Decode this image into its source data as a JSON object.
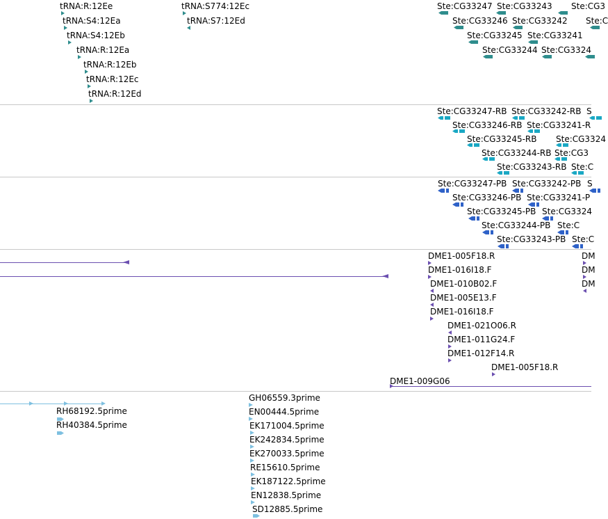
{
  "colors": {
    "separator": "#c8c8c8",
    "gene": "#2f8d8d",
    "mrna": "#1aa8c4",
    "peptide": "#2f62c8",
    "clone": "#6b4fb0",
    "est": "#7ec0e0"
  },
  "tracks": [
    {
      "name": "trna-and-gene-track",
      "features": [
        {
          "label": "tRNA:R:12Ee",
          "glyph": "tri-r"
        },
        {
          "label": "tRNA:S4:12Ea",
          "glyph": "tri-r"
        },
        {
          "label": "tRNA:S4:12Eb",
          "glyph": "tri-r"
        },
        {
          "label": "tRNA:R:12Ea",
          "glyph": "tri-r"
        },
        {
          "label": "tRNA:R:12Eb",
          "glyph": "tri-r"
        },
        {
          "label": "tRNA:R:12Ec",
          "glyph": "tri-r"
        },
        {
          "label": "tRNA:R:12Ed",
          "glyph": "tri-r"
        },
        {
          "label": "tRNA:S774:12Ec",
          "glyph": "tri-r"
        },
        {
          "label": "tRNA:S7:12Ed",
          "glyph": "tri-l"
        },
        {
          "label": "Ste:CG33247",
          "glyph": "gene-l"
        },
        {
          "label": "Ste:CG33243",
          "glyph": "gene-l"
        },
        {
          "label": "Ste:CG3",
          "glyph": "gene-l"
        },
        {
          "label": "Ste:CG33246",
          "glyph": "gene-l"
        },
        {
          "label": "Ste:CG33242",
          "glyph": "gene-l"
        },
        {
          "label": "Ste:C",
          "glyph": "gene-l"
        },
        {
          "label": "Ste:CG33245",
          "glyph": "gene-l"
        },
        {
          "label": "Ste:CG33241",
          "glyph": "gene-l"
        },
        {
          "label": "Ste:CG33244",
          "glyph": "gene-l"
        },
        {
          "label": "Ste:CG3324",
          "glyph": "gene-l"
        },
        {
          "label": "",
          "glyph": "gene-l"
        }
      ]
    },
    {
      "name": "mrna-track",
      "features": [
        {
          "label": "Ste:CG33247-RB",
          "glyph": "mrna-l"
        },
        {
          "label": "Ste:CG33242-RB",
          "glyph": "mrna-l"
        },
        {
          "label": "S",
          "glyph": "mrna-l"
        },
        {
          "label": "Ste:CG33246-RB",
          "glyph": "mrna-l"
        },
        {
          "label": "Ste:CG33241-R",
          "glyph": "mrna-l"
        },
        {
          "label": "Ste:CG33245-RB",
          "glyph": "mrna-l"
        },
        {
          "label": "Ste:CG3324",
          "glyph": "mrna-l"
        },
        {
          "label": "Ste:CG33244-RB",
          "glyph": "mrna-l"
        },
        {
          "label": "Ste:CG3",
          "glyph": "mrna-l"
        },
        {
          "label": "Ste:CG33243-RB",
          "glyph": "mrna-l"
        },
        {
          "label": "Ste:C",
          "glyph": "mrna-l"
        }
      ]
    },
    {
      "name": "peptide-track",
      "features": [
        {
          "label": "Ste:CG33247-PB",
          "glyph": "pep-l"
        },
        {
          "label": "Ste:CG33242-PB",
          "glyph": "pep-l"
        },
        {
          "label": "S",
          "glyph": "pep-l"
        },
        {
          "label": "Ste:CG33246-PB",
          "glyph": "pep-l"
        },
        {
          "label": "Ste:CG33241-P",
          "glyph": "pep-l"
        },
        {
          "label": "Ste:CG33245-PB",
          "glyph": "pep-l"
        },
        {
          "label": "Ste:CG3324",
          "glyph": "pep-l"
        },
        {
          "label": "Ste:CG33244-PB",
          "glyph": "pep-l"
        },
        {
          "label": "Ste:C",
          "glyph": "pep-l"
        },
        {
          "label": "Ste:CG33243-PB",
          "glyph": "pep-l"
        },
        {
          "label": "Ste:C",
          "glyph": "pep-l"
        }
      ]
    },
    {
      "name": "cdna-clone-track",
      "features": [
        {
          "label": "",
          "glyph": "clone-line-l"
        },
        {
          "label": "",
          "glyph": "clone-line-l"
        },
        {
          "label": "DME1-005F18.R",
          "glyph": "clone-r"
        },
        {
          "label": "DME1-016I18.F",
          "glyph": "clone-r"
        },
        {
          "label": "DME1-010B02.F",
          "glyph": "clone-l"
        },
        {
          "label": "DME1-005E13.F",
          "glyph": "clone-l"
        },
        {
          "label": "DME1-016I18.F",
          "glyph": "clone-r"
        },
        {
          "label": "DME1-021O06.R",
          "glyph": "clone-l"
        },
        {
          "label": "DME1-011G24.F",
          "glyph": "clone-r"
        },
        {
          "label": "DME1-012F14.R",
          "glyph": "clone-r"
        },
        {
          "label": "DME1-005F18.R",
          "glyph": "clone-r"
        },
        {
          "label": "DME1-009G06",
          "glyph": "clone-line-r"
        },
        {
          "label": "DM",
          "glyph": "clone-r"
        },
        {
          "label": "DM",
          "glyph": "clone-r"
        },
        {
          "label": "DM",
          "glyph": "clone-l"
        }
      ]
    },
    {
      "name": "est-track",
      "features": [
        {
          "label": "",
          "glyph": "est-line"
        },
        {
          "label": "RH68192.5prime",
          "glyph": "est-bar"
        },
        {
          "label": "RH40384.5prime",
          "glyph": "est-bar"
        },
        {
          "label": "GH06559.3prime",
          "glyph": "est-r"
        },
        {
          "label": "EN00444.5prime",
          "glyph": "est-r"
        },
        {
          "label": "EK171004.5prime",
          "glyph": "est-r"
        },
        {
          "label": "EK242834.5prime",
          "glyph": "est-r"
        },
        {
          "label": "EK270033.5prime",
          "glyph": "est-r"
        },
        {
          "label": "RE15610.5prime",
          "glyph": "est-r"
        },
        {
          "label": "EK187122.5prime",
          "glyph": "est-r"
        },
        {
          "label": "EN12838.5prime",
          "glyph": "est-r"
        },
        {
          "label": "SD12885.5prime",
          "glyph": "est-bar"
        }
      ]
    }
  ]
}
